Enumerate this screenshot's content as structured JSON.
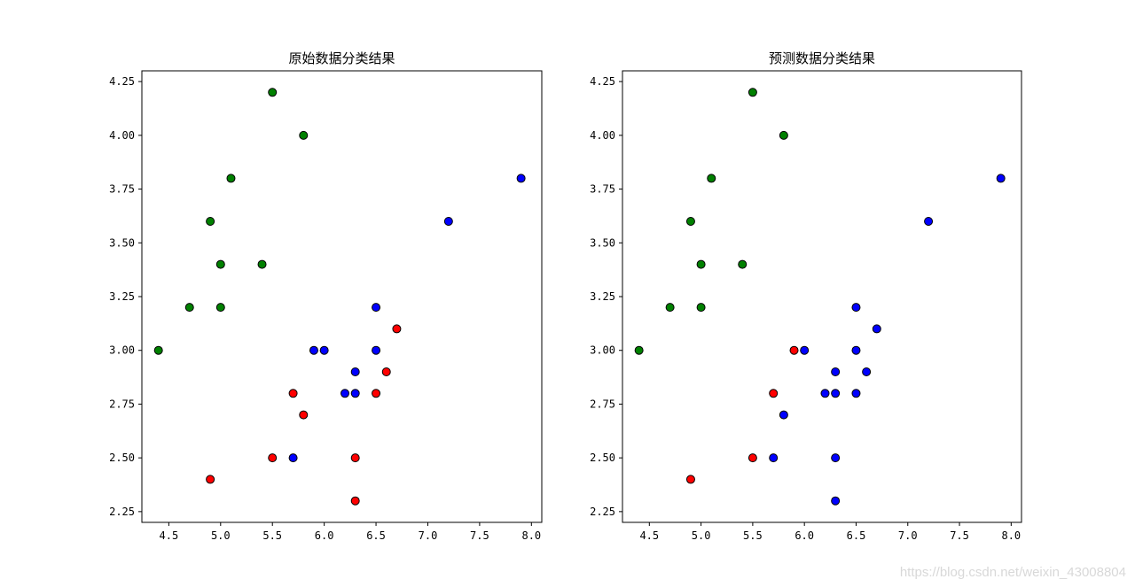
{
  "watermark": "https://blog.csdn.net/weixin_43008804",
  "chart_data": [
    {
      "type": "scatter",
      "title": "原始数据分类结果",
      "xlim": [
        4.24,
        8.1
      ],
      "ylim": [
        2.2,
        4.3
      ],
      "xticks": [
        4.5,
        5.0,
        5.5,
        6.0,
        6.5,
        7.0,
        7.5,
        8.0
      ],
      "xtick_labels": [
        "4.5",
        "5.0",
        "5.5",
        "6.0",
        "6.5",
        "7.0",
        "7.5",
        "8.0"
      ],
      "yticks": [
        2.25,
        2.5,
        2.75,
        3.0,
        3.25,
        3.5,
        3.75,
        4.0,
        4.25
      ],
      "ytick_labels": [
        "2.25",
        "2.50",
        "2.75",
        "3.00",
        "3.25",
        "3.50",
        "3.75",
        "4.00",
        "4.25"
      ],
      "grid": false,
      "series": [
        {
          "color": "#008000",
          "points": [
            [
              5.5,
              4.2
            ],
            [
              5.8,
              4.0
            ],
            [
              5.1,
              3.8
            ],
            [
              4.9,
              3.6
            ],
            [
              5.0,
              3.4
            ],
            [
              5.4,
              3.4
            ],
            [
              4.7,
              3.2
            ],
            [
              5.0,
              3.2
            ],
            [
              4.4,
              3.0
            ]
          ]
        },
        {
          "color": "#0000ff",
          "points": [
            [
              7.9,
              3.8
            ],
            [
              7.2,
              3.6
            ],
            [
              6.5,
              3.2
            ],
            [
              5.9,
              3.0
            ],
            [
              6.0,
              3.0
            ],
            [
              6.5,
              3.0
            ],
            [
              6.3,
              2.9
            ],
            [
              6.2,
              2.8
            ],
            [
              6.3,
              2.8
            ],
            [
              5.7,
              2.5
            ]
          ]
        },
        {
          "color": "#ff0000",
          "points": [
            [
              6.7,
              3.1
            ],
            [
              6.6,
              2.9
            ],
            [
              5.7,
              2.8
            ],
            [
              6.5,
              2.8
            ],
            [
              5.8,
              2.7
            ],
            [
              5.5,
              2.5
            ],
            [
              6.3,
              2.5
            ],
            [
              4.9,
              2.4
            ],
            [
              6.3,
              2.3
            ]
          ]
        }
      ]
    },
    {
      "type": "scatter",
      "title": "预测数据分类结果",
      "xlim": [
        4.24,
        8.1
      ],
      "ylim": [
        2.2,
        4.3
      ],
      "xticks": [
        4.5,
        5.0,
        5.5,
        6.0,
        6.5,
        7.0,
        7.5,
        8.0
      ],
      "xtick_labels": [
        "4.5",
        "5.0",
        "5.5",
        "6.0",
        "6.5",
        "7.0",
        "7.5",
        "8.0"
      ],
      "yticks": [
        2.25,
        2.5,
        2.75,
        3.0,
        3.25,
        3.5,
        3.75,
        4.0,
        4.25
      ],
      "ytick_labels": [
        "2.25",
        "2.50",
        "2.75",
        "3.00",
        "3.25",
        "3.50",
        "3.75",
        "4.00",
        "4.25"
      ],
      "grid": false,
      "series": [
        {
          "color": "#008000",
          "points": [
            [
              5.5,
              4.2
            ],
            [
              5.8,
              4.0
            ],
            [
              5.1,
              3.8
            ],
            [
              4.9,
              3.6
            ],
            [
              5.0,
              3.4
            ],
            [
              5.4,
              3.4
            ],
            [
              4.7,
              3.2
            ],
            [
              5.0,
              3.2
            ],
            [
              4.4,
              3.0
            ]
          ]
        },
        {
          "color": "#0000ff",
          "points": [
            [
              7.9,
              3.8
            ],
            [
              7.2,
              3.6
            ],
            [
              6.5,
              3.2
            ],
            [
              6.7,
              3.1
            ],
            [
              6.0,
              3.0
            ],
            [
              6.5,
              3.0
            ],
            [
              6.3,
              2.9
            ],
            [
              6.6,
              2.9
            ],
            [
              6.2,
              2.8
            ],
            [
              6.3,
              2.8
            ],
            [
              6.5,
              2.8
            ],
            [
              5.8,
              2.7
            ],
            [
              5.7,
              2.5
            ],
            [
              6.3,
              2.5
            ],
            [
              6.3,
              2.3
            ]
          ]
        },
        {
          "color": "#ff0000",
          "points": [
            [
              5.9,
              3.0
            ],
            [
              5.7,
              2.8
            ],
            [
              5.5,
              2.5
            ],
            [
              4.9,
              2.4
            ]
          ]
        }
      ]
    }
  ]
}
